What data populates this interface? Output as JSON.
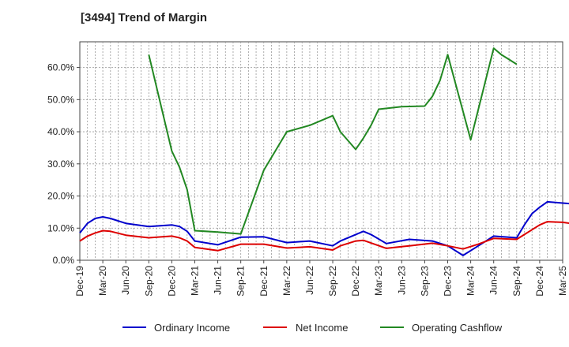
{
  "header": {
    "title": "[3494]  Trend of Margin"
  },
  "colors": {
    "ordinary": "#0000cc",
    "net": "#dd0000",
    "cashflow": "#228822",
    "grid": "#999999"
  },
  "chart_data": {
    "type": "line",
    "title": "[3494]  Trend of Margin",
    "xlabel": "",
    "ylabel": "",
    "ylim": [
      0,
      68
    ],
    "yticks": [
      0,
      10,
      20,
      30,
      40,
      50,
      60
    ],
    "ytick_labels": [
      "0.0%",
      "10.0%",
      "20.0%",
      "30.0%",
      "40.0%",
      "50.0%",
      "60.0%"
    ],
    "xticks": [
      "Dec-19",
      "Mar-20",
      "Jun-20",
      "Sep-20",
      "Dec-20",
      "Mar-21",
      "Jun-21",
      "Sep-21",
      "Dec-21",
      "Mar-22",
      "Jun-22",
      "Sep-22",
      "Dec-22",
      "Mar-23",
      "Jun-23",
      "Sep-23",
      "Dec-23",
      "Mar-24",
      "Jun-24",
      "Sep-24",
      "Dec-24",
      "Mar-25"
    ],
    "grid": true,
    "legend_position": "bottom",
    "series": [
      {
        "name": "Ordinary Income",
        "color": "#0000cc",
        "points": [
          [
            0,
            8.5
          ],
          [
            1,
            11.5
          ],
          [
            2,
            13
          ],
          [
            3,
            13.5
          ],
          [
            4,
            13
          ],
          [
            6,
            11.5
          ],
          [
            9,
            10.5
          ],
          [
            12,
            11
          ],
          [
            13,
            10.5
          ],
          [
            14,
            9
          ],
          [
            15,
            6
          ],
          [
            18,
            4.8
          ],
          [
            21,
            7.2
          ],
          [
            24,
            7.3
          ],
          [
            27,
            5.5
          ],
          [
            30,
            6
          ],
          [
            33,
            4.5
          ],
          [
            34,
            6
          ],
          [
            36,
            8
          ],
          [
            37,
            9
          ],
          [
            38,
            8
          ],
          [
            40,
            5.2
          ],
          [
            43,
            6.5
          ],
          [
            46,
            6
          ],
          [
            48,
            4.5
          ],
          [
            50,
            1.5
          ],
          [
            52,
            4.5
          ],
          [
            54,
            7.5
          ],
          [
            57,
            7
          ],
          [
            58,
            11
          ],
          [
            59,
            14.5
          ],
          [
            60,
            16.5
          ],
          [
            61,
            18.2
          ],
          [
            63,
            17.8
          ],
          [
            64,
            17.6
          ]
        ]
      },
      {
        "name": "Net Income",
        "color": "#dd0000",
        "points": [
          [
            0,
            6
          ],
          [
            1,
            7.5
          ],
          [
            2,
            8.5
          ],
          [
            3,
            9.2
          ],
          [
            4,
            9
          ],
          [
            6,
            7.8
          ],
          [
            9,
            7
          ],
          [
            12,
            7.5
          ],
          [
            13,
            7
          ],
          [
            14,
            6
          ],
          [
            15,
            4
          ],
          [
            18,
            3
          ],
          [
            21,
            5
          ],
          [
            24,
            5
          ],
          [
            27,
            3.8
          ],
          [
            30,
            4.2
          ],
          [
            33,
            3.2
          ],
          [
            34,
            4.5
          ],
          [
            36,
            6
          ],
          [
            37,
            6.2
          ],
          [
            40,
            3.7
          ],
          [
            43,
            4.5
          ],
          [
            46,
            5.3
          ],
          [
            48,
            4.5
          ],
          [
            50,
            3.5
          ],
          [
            52,
            5
          ],
          [
            54,
            6.8
          ],
          [
            57,
            6.5
          ],
          [
            58,
            8
          ],
          [
            59,
            9.5
          ],
          [
            60,
            11
          ],
          [
            61,
            12
          ],
          [
            63,
            11.8
          ],
          [
            64,
            11.5
          ]
        ]
      },
      {
        "name": "Operating Cashflow",
        "color": "#228822",
        "points": [
          [
            9,
            64
          ],
          [
            12,
            34
          ],
          [
            13,
            29
          ],
          [
            14,
            22
          ],
          [
            15,
            9.2
          ],
          [
            18,
            8.8
          ],
          [
            21,
            8.2
          ],
          [
            24,
            28
          ],
          [
            25,
            32
          ],
          [
            26,
            36
          ],
          [
            27,
            40
          ],
          [
            30,
            42
          ],
          [
            33,
            45
          ],
          [
            34,
            40
          ],
          [
            36,
            34.5
          ],
          [
            37,
            38
          ],
          [
            38,
            42
          ],
          [
            39,
            47
          ],
          [
            42,
            47.8
          ],
          [
            45,
            48
          ],
          [
            46,
            51
          ],
          [
            47,
            56
          ],
          [
            48,
            64
          ],
          [
            51,
            37.5
          ],
          [
            54,
            66
          ],
          [
            55,
            64
          ],
          [
            56,
            62.5
          ],
          [
            57,
            61
          ]
        ]
      }
    ]
  }
}
